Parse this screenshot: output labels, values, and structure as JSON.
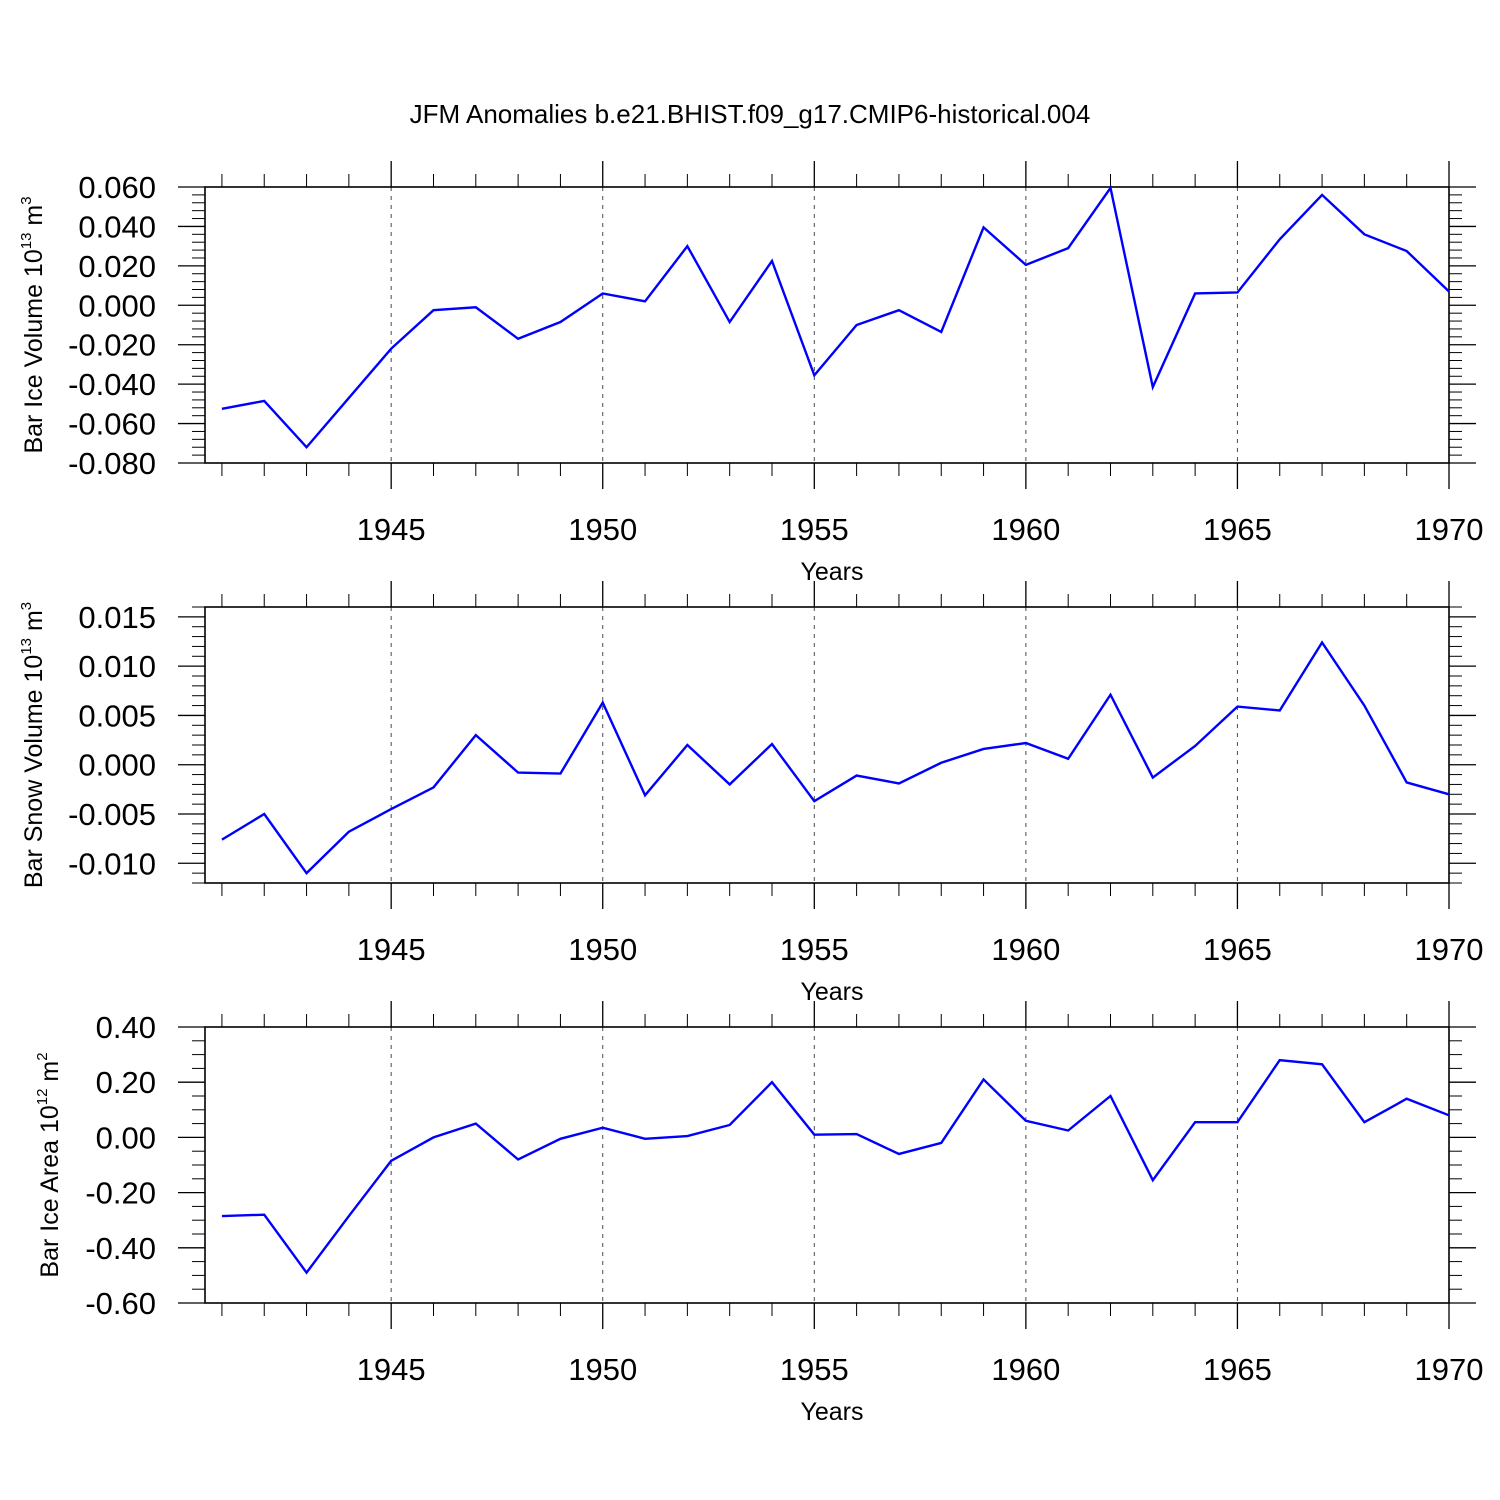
{
  "title": "JFM Anomalies b.e21.BHIST.f09_g17.CMIP6-historical.004",
  "colors": {
    "line": "#0000ff",
    "axis": "#000000",
    "grid": "#000000"
  },
  "chart_data": [
    {
      "type": "line",
      "ylabel": {
        "main": "Bar Ice Volume 10",
        "exp": "13",
        "unit": " m",
        "unit_exp": "3"
      },
      "xlabel": "Years",
      "xlim": [
        1940.6,
        1970
      ],
      "ylim": [
        -0.08,
        0.06
      ],
      "yticks": [
        -0.08,
        -0.06,
        -0.04,
        -0.02,
        0.0,
        0.02,
        0.04,
        0.06
      ],
      "ytick_labels": [
        "-0.080",
        "-0.060",
        "-0.040",
        "-0.020",
        "0.000",
        "0.020",
        "0.040",
        "0.060"
      ],
      "yminor": 0.004,
      "xticks": [
        1945,
        1950,
        1955,
        1960,
        1965,
        1970
      ],
      "xtick_labels": [
        "1945",
        "1950",
        "1955",
        "1960",
        "1965",
        "1970"
      ],
      "grid": "vertical dashed at major x ticks",
      "series": [
        {
          "name": "Bar Ice Volume",
          "x": [
            1941,
            1942,
            1943,
            1944,
            1945,
            1946,
            1947,
            1948,
            1949,
            1950,
            1951,
            1952,
            1953,
            1954,
            1955,
            1956,
            1957,
            1958,
            1959,
            1960,
            1961,
            1962,
            1963,
            1964,
            1965,
            1966,
            1967,
            1968,
            1969,
            1970
          ],
          "values": [
            -0.0525,
            -0.0485,
            -0.072,
            -0.047,
            -0.022,
            -0.0025,
            -0.001,
            -0.017,
            -0.0085,
            0.006,
            0.002,
            0.03,
            -0.0085,
            0.0225,
            -0.0355,
            -0.01,
            -0.0025,
            -0.0135,
            0.0395,
            0.0205,
            0.029,
            0.0595,
            -0.0415,
            0.006,
            0.0065,
            0.0335,
            0.056,
            0.036,
            0.0275,
            0.007
          ]
        }
      ]
    },
    {
      "type": "line",
      "ylabel": {
        "main": "Bar Snow Volume 10",
        "exp": "13",
        "unit": " m",
        "unit_exp": "3"
      },
      "xlabel": "Years",
      "xlim": [
        1940.6,
        1970
      ],
      "ylim": [
        -0.012,
        0.016
      ],
      "yticks": [
        -0.01,
        -0.005,
        0.0,
        0.005,
        0.01,
        0.015
      ],
      "ytick_labels": [
        "-0.010",
        "-0.005",
        "0.000",
        "0.005",
        "0.010",
        "0.015"
      ],
      "yminor": 0.001,
      "xticks": [
        1945,
        1950,
        1955,
        1960,
        1965,
        1970
      ],
      "xtick_labels": [
        "1945",
        "1950",
        "1955",
        "1960",
        "1965",
        "1970"
      ],
      "grid": "vertical dashed at major x ticks",
      "series": [
        {
          "name": "Bar Snow Volume",
          "x": [
            1941,
            1942,
            1943,
            1944,
            1945,
            1946,
            1947,
            1948,
            1949,
            1950,
            1951,
            1952,
            1953,
            1954,
            1955,
            1956,
            1957,
            1958,
            1959,
            1960,
            1961,
            1962,
            1963,
            1964,
            1965,
            1966,
            1967,
            1968,
            1969,
            1970
          ],
          "values": [
            -0.0076,
            -0.005,
            -0.011,
            -0.0068,
            -0.0045,
            -0.0023,
            0.003,
            -0.0008,
            -0.0009,
            0.0063,
            -0.0031,
            0.002,
            -0.002,
            0.0021,
            -0.0037,
            -0.0011,
            -0.0019,
            0.0002,
            0.0016,
            0.0022,
            0.0006,
            0.0071,
            -0.0013,
            0.0019,
            0.0059,
            0.0055,
            0.0124,
            0.006,
            -0.0018,
            -0.003
          ]
        }
      ]
    },
    {
      "type": "line",
      "ylabel": {
        "main": "Bar Ice Area 10",
        "exp": "12",
        "unit": " m",
        "unit_exp": "2"
      },
      "xlabel": "Years",
      "xlim": [
        1940.6,
        1970
      ],
      "ylim": [
        -0.6,
        0.4
      ],
      "yticks": [
        -0.6,
        -0.4,
        -0.2,
        0.0,
        0.2,
        0.4
      ],
      "ytick_labels": [
        "-0.60",
        "-0.40",
        "-0.20",
        "0.00",
        "0.20",
        "0.40"
      ],
      "yminor": 0.05,
      "xticks": [
        1945,
        1950,
        1955,
        1960,
        1965,
        1970
      ],
      "xtick_labels": [
        "1945",
        "1950",
        "1955",
        "1960",
        "1965",
        "1970"
      ],
      "grid": "vertical dashed at major x ticks",
      "series": [
        {
          "name": "Bar Ice Area",
          "x": [
            1941,
            1942,
            1943,
            1944,
            1945,
            1946,
            1947,
            1948,
            1949,
            1950,
            1951,
            1952,
            1953,
            1954,
            1955,
            1956,
            1957,
            1958,
            1959,
            1960,
            1961,
            1962,
            1963,
            1964,
            1965,
            1966,
            1967,
            1968,
            1969,
            1970
          ],
          "values": [
            -0.285,
            -0.28,
            -0.49,
            -0.285,
            -0.085,
            0.0,
            0.05,
            -0.08,
            -0.005,
            0.035,
            -0.005,
            0.005,
            0.045,
            0.2,
            0.01,
            0.012,
            -0.06,
            -0.02,
            0.21,
            0.06,
            0.025,
            0.15,
            -0.155,
            0.055,
            0.055,
            0.28,
            0.265,
            0.055,
            0.14,
            0.08
          ]
        }
      ]
    }
  ]
}
